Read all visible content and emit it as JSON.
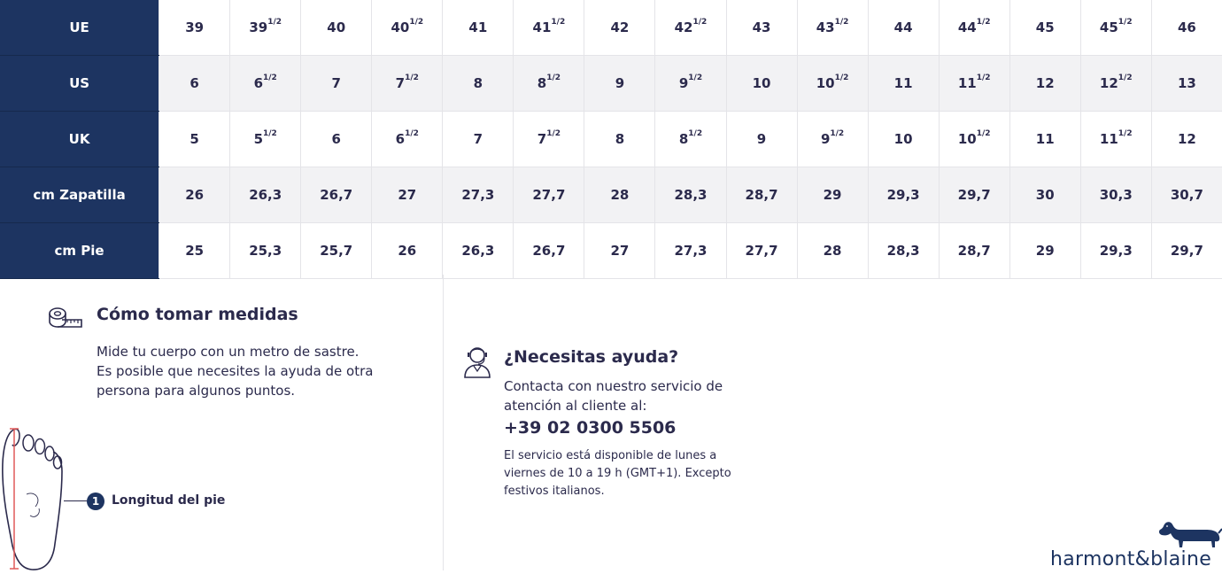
{
  "size_table": {
    "rows": [
      {
        "label": "UE",
        "cells": [
          {
            "main": "39",
            "sup": ""
          },
          {
            "main": "39",
            "sup": "1/2"
          },
          {
            "main": "40",
            "sup": ""
          },
          {
            "main": "40",
            "sup": "1/2"
          },
          {
            "main": "41",
            "sup": ""
          },
          {
            "main": "41",
            "sup": "1/2"
          },
          {
            "main": "42",
            "sup": ""
          },
          {
            "main": "42",
            "sup": "1/2"
          },
          {
            "main": "43",
            "sup": ""
          },
          {
            "main": "43",
            "sup": "1/2"
          },
          {
            "main": "44",
            "sup": ""
          },
          {
            "main": "44",
            "sup": "1/2"
          },
          {
            "main": "45",
            "sup": ""
          },
          {
            "main": "45",
            "sup": "1/2"
          },
          {
            "main": "46",
            "sup": ""
          }
        ]
      },
      {
        "label": "US",
        "cells": [
          {
            "main": "6",
            "sup": ""
          },
          {
            "main": "6",
            "sup": "1/2"
          },
          {
            "main": "7",
            "sup": ""
          },
          {
            "main": "7",
            "sup": "1/2"
          },
          {
            "main": "8",
            "sup": ""
          },
          {
            "main": "8",
            "sup": "1/2"
          },
          {
            "main": "9",
            "sup": ""
          },
          {
            "main": "9",
            "sup": "1/2"
          },
          {
            "main": "10",
            "sup": ""
          },
          {
            "main": "10",
            "sup": "1/2"
          },
          {
            "main": "11",
            "sup": ""
          },
          {
            "main": "11",
            "sup": "1/2"
          },
          {
            "main": "12",
            "sup": ""
          },
          {
            "main": "12",
            "sup": "1/2"
          },
          {
            "main": "13",
            "sup": ""
          }
        ]
      },
      {
        "label": "UK",
        "cells": [
          {
            "main": "5",
            "sup": ""
          },
          {
            "main": "5",
            "sup": "1/2"
          },
          {
            "main": "6",
            "sup": ""
          },
          {
            "main": "6",
            "sup": "1/2"
          },
          {
            "main": "7",
            "sup": ""
          },
          {
            "main": "7",
            "sup": "1/2"
          },
          {
            "main": "8",
            "sup": ""
          },
          {
            "main": "8",
            "sup": "1/2"
          },
          {
            "main": "9",
            "sup": ""
          },
          {
            "main": "9",
            "sup": "1/2"
          },
          {
            "main": "10",
            "sup": ""
          },
          {
            "main": "10",
            "sup": "1/2"
          },
          {
            "main": "11",
            "sup": ""
          },
          {
            "main": "11",
            "sup": "1/2"
          },
          {
            "main": "12",
            "sup": ""
          }
        ]
      },
      {
        "label": "cm Zapatilla",
        "cells": [
          {
            "main": "26",
            "sup": ""
          },
          {
            "main": "26,3",
            "sup": ""
          },
          {
            "main": "26,7",
            "sup": ""
          },
          {
            "main": "27",
            "sup": ""
          },
          {
            "main": "27,3",
            "sup": ""
          },
          {
            "main": "27,7",
            "sup": ""
          },
          {
            "main": "28",
            "sup": ""
          },
          {
            "main": "28,3",
            "sup": ""
          },
          {
            "main": "28,7",
            "sup": ""
          },
          {
            "main": "29",
            "sup": ""
          },
          {
            "main": "29,3",
            "sup": ""
          },
          {
            "main": "29,7",
            "sup": ""
          },
          {
            "main": "30",
            "sup": ""
          },
          {
            "main": "30,3",
            "sup": ""
          },
          {
            "main": "30,7",
            "sup": ""
          }
        ]
      },
      {
        "label": "cm Pie",
        "cells": [
          {
            "main": "25",
            "sup": ""
          },
          {
            "main": "25,3",
            "sup": ""
          },
          {
            "main": "25,7",
            "sup": ""
          },
          {
            "main": "26",
            "sup": ""
          },
          {
            "main": "26,3",
            "sup": ""
          },
          {
            "main": "26,7",
            "sup": ""
          },
          {
            "main": "27",
            "sup": ""
          },
          {
            "main": "27,3",
            "sup": ""
          },
          {
            "main": "27,7",
            "sup": ""
          },
          {
            "main": "28",
            "sup": ""
          },
          {
            "main": "28,3",
            "sup": ""
          },
          {
            "main": "28,7",
            "sup": ""
          },
          {
            "main": "29",
            "sup": ""
          },
          {
            "main": "29,3",
            "sup": ""
          },
          {
            "main": "29,7",
            "sup": ""
          }
        ]
      }
    ]
  },
  "measure": {
    "icon": "tape-measure-icon",
    "title": "Cómo tomar medidas",
    "description_lines": [
      "Mide tu cuerpo con un metro de sastre.",
      "Es posible que necesites la ayuda de otra",
      "persona para algunos puntos."
    ],
    "step_number": "1",
    "step_label": "Longitud del pie",
    "illustration": "foot-outline-icon"
  },
  "help": {
    "icon": "support-agent-icon",
    "title": "¿Necesitas ayuda?",
    "contact_lines": [
      "Contacta con nuestro servicio de",
      "atención al cliente al:"
    ],
    "phone": "+39 02 0300 5506",
    "hours_lines": [
      "El servicio está disponible de lunes a",
      "viernes de 10 a 19 h (GMT+1). Excepto",
      "festivos italianos."
    ]
  },
  "brand": {
    "logo_icon": "dachshund-logo-icon",
    "name": "harmont&blaine"
  },
  "colors": {
    "header_navy": "#1d3461",
    "text_dark": "#2b2a4c",
    "row_alt": "#f2f2f4",
    "measure_line": "#e05a5a"
  }
}
